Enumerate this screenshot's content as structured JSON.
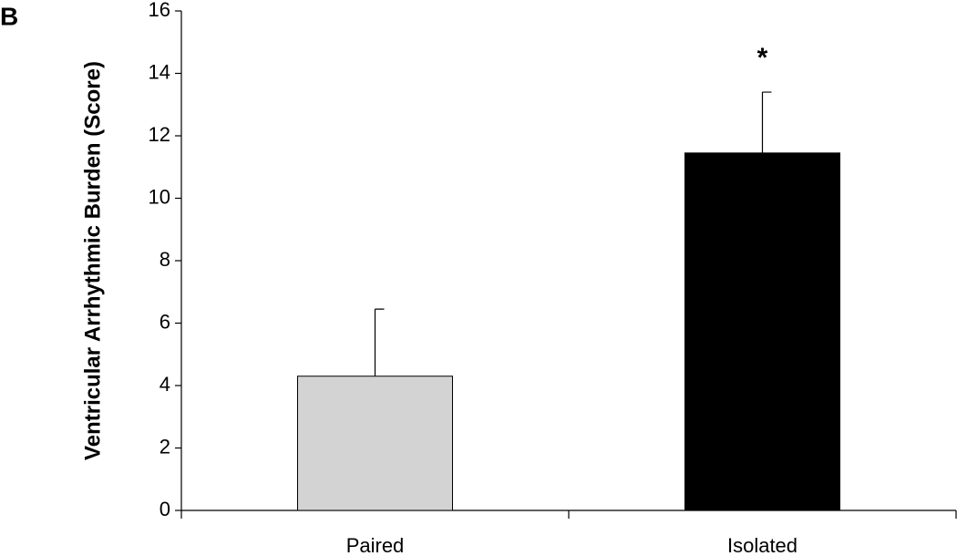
{
  "chart_data": {
    "type": "bar",
    "panel_label": "B",
    "ylabel": "Ventricular Arrhythmic Burden (Score)",
    "categories": [
      "Paired",
      "Isolated"
    ],
    "values": [
      4.3,
      11.45
    ],
    "errors": [
      2.15,
      1.95
    ],
    "colors": [
      "#d3d3d3",
      "#000000"
    ],
    "annotation": "*",
    "ylim": [
      0,
      16
    ],
    "yticks": [
      0,
      2,
      4,
      6,
      8,
      10,
      12,
      14,
      16
    ],
    "grid": false
  }
}
